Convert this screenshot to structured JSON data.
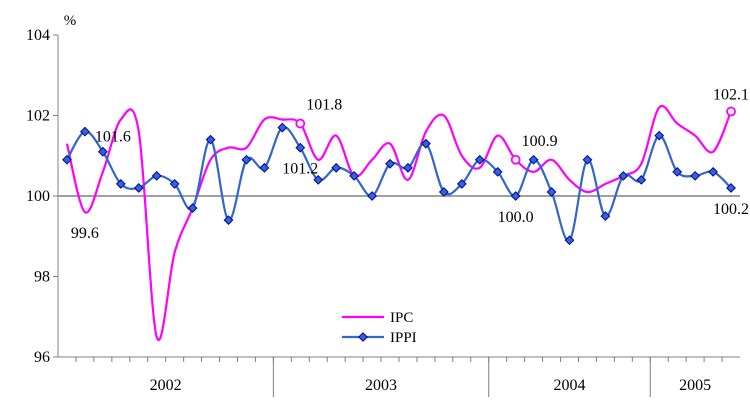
{
  "chart_data": {
    "type": "line",
    "ylabel": "%",
    "ylim": [
      96,
      104
    ],
    "yticks": [
      96,
      98,
      100,
      102,
      104
    ],
    "reference_line": 100,
    "grid": false,
    "x_group_labels": [
      "2002",
      "2003",
      "2004",
      "2005"
    ],
    "legend_position": "bottom-center",
    "series": [
      {
        "name": "IPC",
        "color": "#ff00ff",
        "marker": "none",
        "values": [
          101.3,
          99.6,
          100.6,
          101.9,
          101.6,
          96.5,
          98.6,
          99.7,
          100.9,
          101.2,
          101.2,
          101.9,
          101.9,
          101.8,
          100.9,
          101.5,
          100.5,
          100.9,
          101.3,
          100.4,
          101.6,
          102.0,
          101.0,
          100.7,
          101.5,
          100.9,
          100.6,
          100.9,
          100.4,
          100.1,
          100.3,
          100.5,
          100.8,
          102.2,
          101.8,
          101.5,
          101.1,
          102.1
        ]
      },
      {
        "name": "IPPI",
        "color": "#3366cc",
        "marker": "diamond",
        "values": [
          100.9,
          101.6,
          101.1,
          100.3,
          100.2,
          100.5,
          100.3,
          99.7,
          101.4,
          99.4,
          100.9,
          100.7,
          101.7,
          101.2,
          100.4,
          100.7,
          100.5,
          100.0,
          100.8,
          100.7,
          101.3,
          100.1,
          100.3,
          100.9,
          100.6,
          100.0,
          100.9,
          100.1,
          98.9,
          100.9,
          99.5,
          100.5,
          100.4,
          101.5,
          100.6,
          100.5,
          100.6,
          100.2
        ]
      }
    ],
    "annotations": [
      {
        "text": "99.6",
        "series": 0,
        "index": 1,
        "pos": "below"
      },
      {
        "text": "101.6",
        "series": 1,
        "index": 1,
        "pos": "right"
      },
      {
        "text": "101.8",
        "series": 0,
        "index": 13,
        "pos": "above-right"
      },
      {
        "text": "101.2",
        "series": 1,
        "index": 13,
        "pos": "below"
      },
      {
        "text": "100.9",
        "series": 0,
        "index": 25,
        "pos": "above-right"
      },
      {
        "text": "100.0",
        "series": 1,
        "index": 25,
        "pos": "below"
      },
      {
        "text": "102.1",
        "series": 0,
        "index": 37,
        "pos": "above"
      },
      {
        "text": "100.2",
        "series": 1,
        "index": 37,
        "pos": "below"
      }
    ],
    "highlight_points": [
      {
        "series": 0,
        "index": 13
      },
      {
        "series": 0,
        "index": 25
      },
      {
        "series": 0,
        "index": 37
      }
    ]
  }
}
